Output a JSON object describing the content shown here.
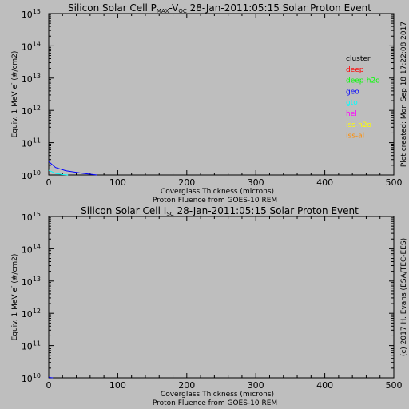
{
  "chart_data": [
    {
      "type": "line",
      "title_main": "Silicon Solar Cell P",
      "title_sub1": "MAX",
      "title_mid": "-V",
      "title_sub2": "OC",
      "title_rest": " 28-Jan-2011:05:15 Solar Proton Event",
      "xlabel": "Coverglass Thickness (microns)",
      "xlabel2": "Proton Fluence from GOES-10 REM",
      "ylabel_prefix": "Equiv. 1 MeV e",
      "ylabel_sup": "-",
      "ylabel_suffix": " (#/cm2)",
      "side_label": "Plot created: Mon Sep 18 17:22:08 2017",
      "xlim": [
        0,
        500
      ],
      "ylim_log10": [
        10,
        15
      ],
      "y_scale": "log",
      "x_ticks": [
        "0",
        "100",
        "200",
        "300",
        "400",
        "500"
      ],
      "y_tick_mantissa": "10",
      "y_tick_exponents": [
        "10",
        "11",
        "12",
        "13",
        "14",
        "15"
      ],
      "legend_position": "right",
      "series": [
        {
          "name": "cluster",
          "color": "#000000",
          "x": [
            0,
            10,
            25,
            50,
            70
          ],
          "y": [
            10000000000.0,
            10000000000.0,
            10000000000.0,
            10000000000.0,
            10000000000.0
          ]
        },
        {
          "name": "deep",
          "color": "#ff0000",
          "x": [],
          "y": []
        },
        {
          "name": "deep-h2o",
          "color": "#00ff00",
          "x": [],
          "y": []
        },
        {
          "name": "geo",
          "color": "#0000ff",
          "x": [
            0,
            5,
            10,
            25,
            50,
            70
          ],
          "y": [
            26000000000.0,
            21000000000.0,
            17000000000.0,
            13500000000.0,
            11200000000.0,
            10000000000.0
          ]
        },
        {
          "name": "gto",
          "color": "#00ffff",
          "x": [
            0,
            5,
            10,
            20,
            28
          ],
          "y": [
            14000000000.0,
            12500000000.0,
            11200000000.0,
            10300000000.0,
            10000000000.0
          ]
        },
        {
          "name": "hel",
          "color": "#ff00ff",
          "x": [],
          "y": []
        },
        {
          "name": "iss-h2o",
          "color": "#ffff00",
          "x": [],
          "y": []
        },
        {
          "name": "iss-al",
          "color": "#ff8c00",
          "x": [],
          "y": []
        }
      ]
    },
    {
      "type": "line",
      "title_main": "Silicon Solar Cell I",
      "title_sub1": "SC",
      "title_rest": " 28-Jan-2011:05:15 Solar Proton Event",
      "xlabel": "Coverglass Thickness (microns)",
      "xlabel2": "Proton Fluence from GOES-10 REM",
      "ylabel_prefix": "Equiv. 1 MeV e",
      "ylabel_sup": "-",
      "ylabel_suffix": " (#/cm2)",
      "side_label": "(c) 2017 H. Evans (ESA/TEC-EES)",
      "xlim": [
        0,
        500
      ],
      "ylim_log10": [
        10,
        15
      ],
      "y_scale": "log",
      "x_ticks": [
        "0",
        "100",
        "200",
        "300",
        "400",
        "500"
      ],
      "y_tick_mantissa": "10",
      "y_tick_exponents": [
        "10",
        "11",
        "12",
        "13",
        "14",
        "15"
      ],
      "series": [
        {
          "name": "geo",
          "color": "#0000ff",
          "x": [
            0,
            3,
            6
          ],
          "y": [
            10500000000.0,
            10200000000.0,
            10000000000.0
          ]
        }
      ]
    }
  ]
}
